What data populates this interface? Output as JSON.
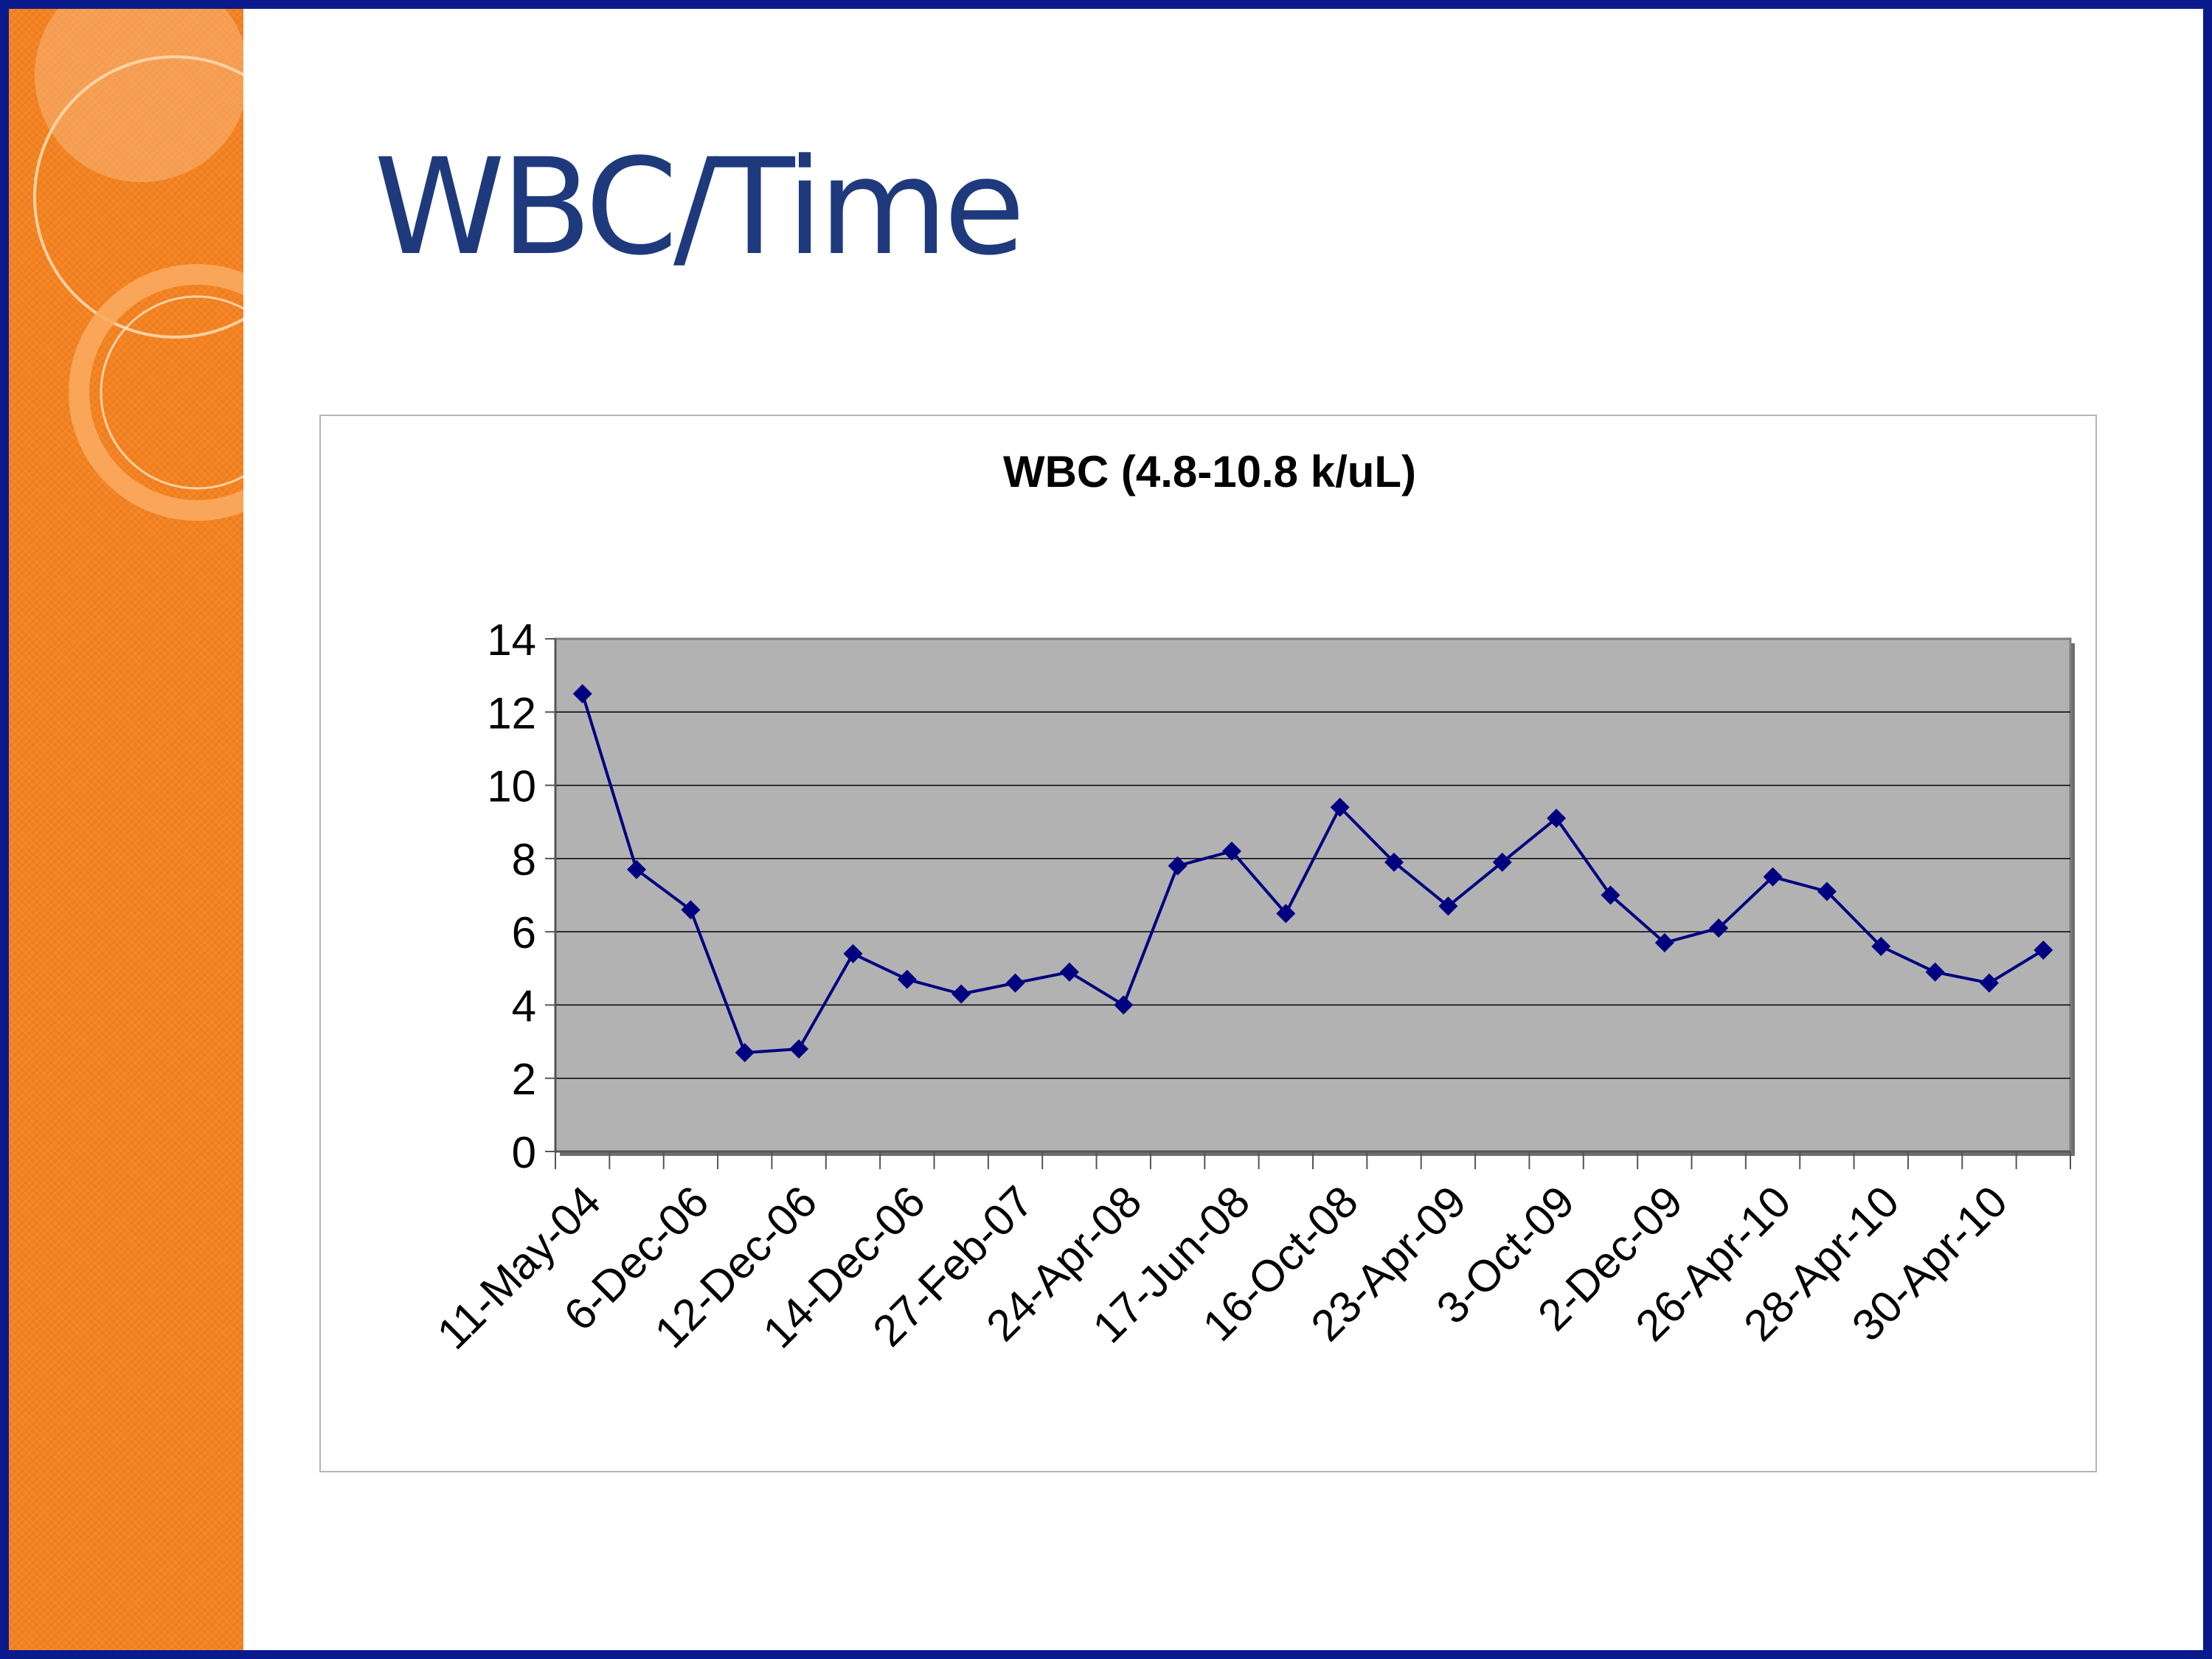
{
  "slide": {
    "title": "WBC/Time",
    "colors": {
      "accent_orange": "#f5821f",
      "frame_blue": "#0a1a8c",
      "title_blue": "#1f3a7c"
    }
  },
  "chart_data": {
    "type": "line",
    "title": "WBC (4.8-10.8 k/uL)",
    "xlabel": "",
    "ylabel": "",
    "ylim": [
      0,
      14
    ],
    "yticks": [
      0,
      2,
      4,
      6,
      8,
      10,
      12,
      14
    ],
    "xtick_labels": [
      "11-May-04",
      "6-Dec-06",
      "12-Dec-06",
      "14-Dec-06",
      "27-Feb-07",
      "24-Apr-08",
      "17-Jun-08",
      "16-Oct-08",
      "23-Apr-09",
      "3-Oct-09",
      "2-Dec-09",
      "26-Apr-10",
      "28-Apr-10",
      "30-Apr-10"
    ],
    "values": [
      12.5,
      7.7,
      6.6,
      2.7,
      2.8,
      5.4,
      4.7,
      4.3,
      4.6,
      4.9,
      4.0,
      7.8,
      8.2,
      6.5,
      9.4,
      7.9,
      6.7,
      7.9,
      9.1,
      7.0,
      5.7,
      6.1,
      7.5,
      7.1,
      5.6,
      4.9,
      4.6,
      5.5
    ],
    "grid": true,
    "legend": "none",
    "plot_background": "#b2b2b2",
    "series_color": "#000080"
  }
}
